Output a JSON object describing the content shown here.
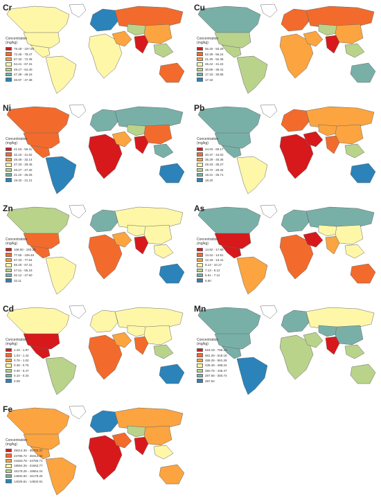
{
  "legend_title_line1": "Concentration",
  "legend_title_line2": "(mg/kg)",
  "palette": [
    "#d7191c",
    "#f26b2d",
    "#fba440",
    "#fef7a8",
    "#b9d38b",
    "#78b0a8",
    "#2b83ba"
  ],
  "panels": [
    {
      "element": "Cr",
      "legend": [
        "78.48 - 107.00",
        "72.46 - 78.47",
        "67.32 - 72.45",
        "64.41 - 67.31",
        "49.17 - 64.40",
        "47.39 - 49.16",
        "46.97 - 47.38"
      ],
      "regions": {
        "na": 3,
        "cus": 3,
        "sa": 3,
        "eu": 6,
        "af": 3,
        "ru": 1,
        "me": 2,
        "ca": 4,
        "ind": 0,
        "cn": 2,
        "sea": 4,
        "au": 1
      }
    },
    {
      "element": "Cu",
      "legend": [
        "56.25 - 83.29",
        "52.39 - 56.24",
        "41.25 - 52.38",
        "36.42 - 41.24",
        "30.86 - 36.41",
        "17.33 - 30.85",
        "17.32"
      ],
      "regions": {
        "na": 5,
        "cus": 4,
        "sa": 4,
        "eu": 1,
        "af": 2,
        "ru": 1,
        "me": 2,
        "ca": 4,
        "ind": 0,
        "cn": 2,
        "sea": 4,
        "au": 5
      }
    },
    {
      "element": "Ni",
      "legend": [
        "41.53 - 56.11",
        "32.15 - 41.52",
        "28.46 - 32.14",
        "27.33 - 28.45",
        "26.27 - 27.32",
        "21.22 - 26.26",
        "19.32 - 21.21"
      ],
      "regions": {
        "na": 1,
        "cus": 1,
        "sa": 6,
        "eu": 5,
        "af": 0,
        "ru": 5,
        "me": 2,
        "ca": 4,
        "ind": 0,
        "cn": 1,
        "sea": 5,
        "au": 6
      }
    },
    {
      "element": "Pb",
      "legend": [
        "44.03 - 69.17",
        "40.37 - 44.02",
        "35.29 - 40.36",
        "29.33 - 35.27",
        "25.72 - 29.32",
        "18.21 - 25.71",
        "18.20"
      ],
      "regions": {
        "na": 5,
        "cus": 5,
        "sa": 3,
        "eu": 1,
        "af": 0,
        "ru": 2,
        "me": 0,
        "ca": 2,
        "ind": 1,
        "cn": 2,
        "sea": 4,
        "au": 6
      }
    },
    {
      "element": "Zn",
      "legend": [
        "108.50 - 183.25",
        "77.55 - 108.49",
        "67.33 - 77.54",
        "55.20 - 67.31",
        "47.51 - 55.19",
        "32.12 - 47.50",
        "32.11"
      ],
      "regions": {
        "na": 4,
        "cus": 1,
        "sa": 3,
        "eu": 5,
        "af": 1,
        "ru": 3,
        "me": 2,
        "ca": 3,
        "ind": 0,
        "cn": 3,
        "sea": 3,
        "au": 6
      }
    },
    {
      "element": "As",
      "legend": [
        "14.92 - 17.65",
        "13.42 - 14.91",
        "12.18 - 13.41",
        "9.13 - 10.17",
        "7.13 - 9.12",
        "5.61 - 7.12",
        "5.60"
      ],
      "regions": {
        "na": 5,
        "cus": 0,
        "sa": 2,
        "eu": 5,
        "af": 1,
        "ru": 5,
        "me": 0,
        "ca": 3,
        "ind": 2,
        "cn": 3,
        "sea": 3,
        "au": 1
      }
    },
    {
      "element": "Cd",
      "legend": [
        "1.43 - 1.87",
        "1.03 - 1.42",
        "0.76 - 1.02",
        "0.48 - 0.75",
        "0.30 - 0.47",
        "0.10 - 0.34",
        "0.09"
      ],
      "regions": {
        "na": 3,
        "cus": 0,
        "sa": 4,
        "eu": 3,
        "af": 1,
        "ru": 3,
        "me": 2,
        "ca": 3,
        "ind": 1,
        "cn": 3,
        "sea": 4,
        "au": 6
      }
    },
    {
      "element": "Mn",
      "legend": [
        "618.19 - 785.12",
        "581.29 - 618.18",
        "488.25 - 581.28",
        "436.49 - 488.24",
        "350.75 - 436.47",
        "287.55 - 350.74",
        "287.54"
      ],
      "regions": {
        "na": 5,
        "cus": 5,
        "sa": 6,
        "eu": 5,
        "af": 4,
        "ru": 3,
        "me": 4,
        "ca": 5,
        "ind": 0,
        "cn": 5,
        "sea": 4,
        "au": 4
      }
    },
    {
      "element": "Fe",
      "legend": [
        "28414.35 - 35702.37",
        "24785.72 - 28414.34",
        "21663.78 - 24785.71",
        "18654.25 - 21663.77",
        "16178.25 - 18654.24",
        "14602.92 - 16178.25",
        "14026.61 - 14602.91"
      ],
      "regions": {
        "na": 2,
        "cus": 2,
        "sa": 2,
        "eu": 6,
        "af": 0,
        "ru": 2,
        "me": 1,
        "ca": 4,
        "ind": 0,
        "cn": 2,
        "sea": 3,
        "au": 2
      }
    }
  ]
}
